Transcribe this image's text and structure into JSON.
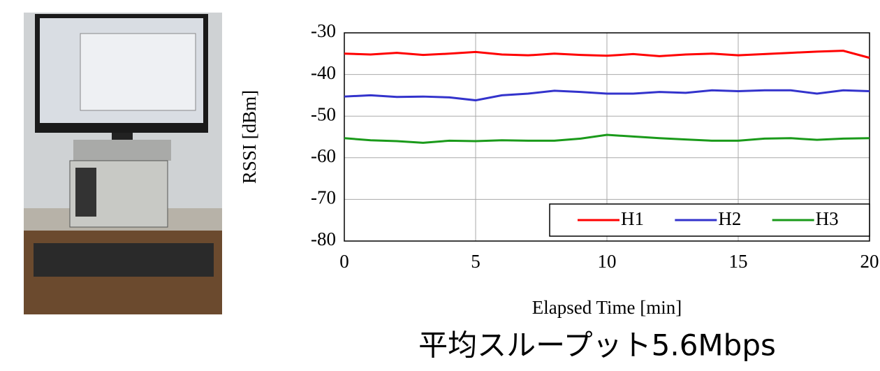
{
  "chart_data": {
    "type": "line",
    "x": [
      0,
      1,
      2,
      3,
      4,
      5,
      6,
      7,
      8,
      9,
      10,
      11,
      12,
      13,
      14,
      15,
      16,
      17,
      18,
      19,
      20
    ],
    "series": [
      {
        "name": "H1",
        "color": "#ff0000",
        "values": [
          -35,
          -35.2,
          -34.8,
          -35.3,
          -35,
          -34.6,
          -35.2,
          -35.4,
          -35,
          -35.3,
          -35.5,
          -35.1,
          -35.6,
          -35.2,
          -35,
          -35.4,
          -35.1,
          -34.8,
          -34.5,
          -34.3,
          -36
        ]
      },
      {
        "name": "H2",
        "color": "#3333cc",
        "values": [
          -45.3,
          -45,
          -45.4,
          -45.3,
          -45.5,
          -46.2,
          -45,
          -44.6,
          -43.9,
          -44.2,
          -44.6,
          -44.6,
          -44.2,
          -44.4,
          -43.8,
          -44,
          -43.8,
          -43.8,
          -44.6,
          -43.8,
          -44
        ]
      },
      {
        "name": "H3",
        "color": "#1a9a1a",
        "values": [
          -55.3,
          -55.8,
          -56,
          -56.4,
          -55.9,
          -56,
          -55.8,
          -55.9,
          -55.9,
          -55.4,
          -54.5,
          -54.9,
          -55.3,
          -55.6,
          -55.9,
          -55.9,
          -55.4,
          -55.3,
          -55.7,
          -55.4,
          -55.3
        ]
      }
    ],
    "xlabel": "Elapsed Time [min]",
    "ylabel": "RSSI [dBm]",
    "xlim": [
      0,
      20
    ],
    "xticks": [
      0,
      5,
      10,
      15,
      20
    ],
    "ylim": [
      -80,
      -30
    ],
    "yticks": [
      -80,
      -70,
      -60,
      -50,
      -40,
      -30
    ],
    "grid": true,
    "legend": "lower right",
    "caption": "平均スループット5.6Mbps"
  }
}
